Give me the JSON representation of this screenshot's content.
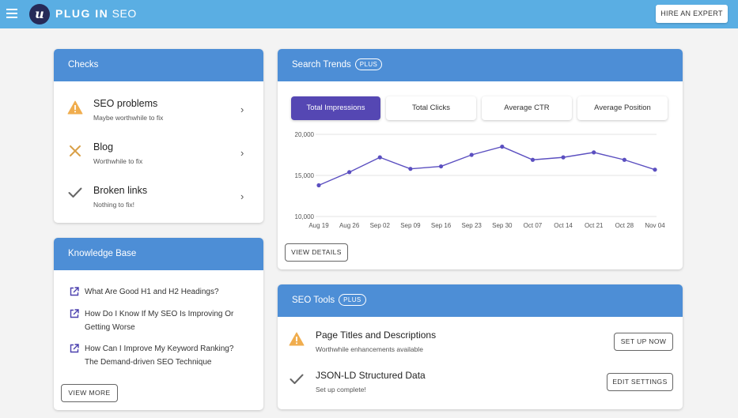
{
  "app": {
    "name_bold": "PLUG IN",
    "name_rest": " SEO",
    "logo_letter": "u"
  },
  "header": {
    "hire_button": "HIRE AN EXPERT"
  },
  "checks": {
    "title": "Checks",
    "items": [
      {
        "title": "SEO problems",
        "subtitle": "Maybe worthwhile to fix",
        "icon": "warning-icon"
      },
      {
        "title": "Blog",
        "subtitle": "Worthwhile to fix",
        "icon": "cross-icon"
      },
      {
        "title": "Broken links",
        "subtitle": "Nothing to fix!",
        "icon": "checkmark-icon"
      }
    ],
    "chevron": "›"
  },
  "knowledge_base": {
    "title": "Knowledge Base",
    "links": [
      {
        "line1": "What Are Good H1 and H2 Headings?",
        "line2": ""
      },
      {
        "line1": "How Do I Know If My SEO Is Improving Or",
        "line2": "Getting Worse"
      },
      {
        "line1": "How Can I Improve My Keyword Ranking?",
        "line2": "The Demand-driven SEO Technique"
      }
    ],
    "view_more": "VIEW MORE"
  },
  "search_trends": {
    "title": "Search Trends",
    "badge": "PLUS",
    "tabs": [
      "Total Impressions",
      "Total Clicks",
      "Average CTR",
      "Average Position"
    ],
    "active_tab": "Total Impressions",
    "view_details": "VIEW DETAILS"
  },
  "seo_tools": {
    "title": "SEO Tools",
    "badge": "PLUS",
    "items": [
      {
        "title": "Page Titles and Descriptions",
        "subtitle": "Worthwhile enhancements available",
        "button": "SET UP NOW",
        "icon": "warning-icon"
      },
      {
        "title": "JSON-LD Structured Data",
        "subtitle": "Set up complete!",
        "button": "EDIT SETTINGS",
        "icon": "checkmark-icon"
      }
    ]
  },
  "colors": {
    "topbar": "#5aaee3",
    "card_header": "#4d8ed6",
    "accent": "#5547b3",
    "line": "#5b4fc0",
    "warning": "#f0ad4e"
  },
  "chart_data": {
    "type": "line",
    "categories": [
      "Aug 19",
      "Aug 26",
      "Sep 02",
      "Sep 09",
      "Sep 16",
      "Sep 23",
      "Sep 30",
      "Oct 07",
      "Oct 14",
      "Oct 21",
      "Oct 28",
      "Nov 04"
    ],
    "series": [
      {
        "values": [
          13800,
          15400,
          17200,
          15800,
          16100,
          17500,
          18500,
          16900,
          17200,
          17800,
          16900,
          15700
        ]
      }
    ],
    "y_ticks": [
      "10,000",
      "15,000",
      "20,000"
    ],
    "ylim": [
      10000,
      20000
    ],
    "title": "",
    "xlabel": "",
    "ylabel": "",
    "grid": "horizontal"
  }
}
